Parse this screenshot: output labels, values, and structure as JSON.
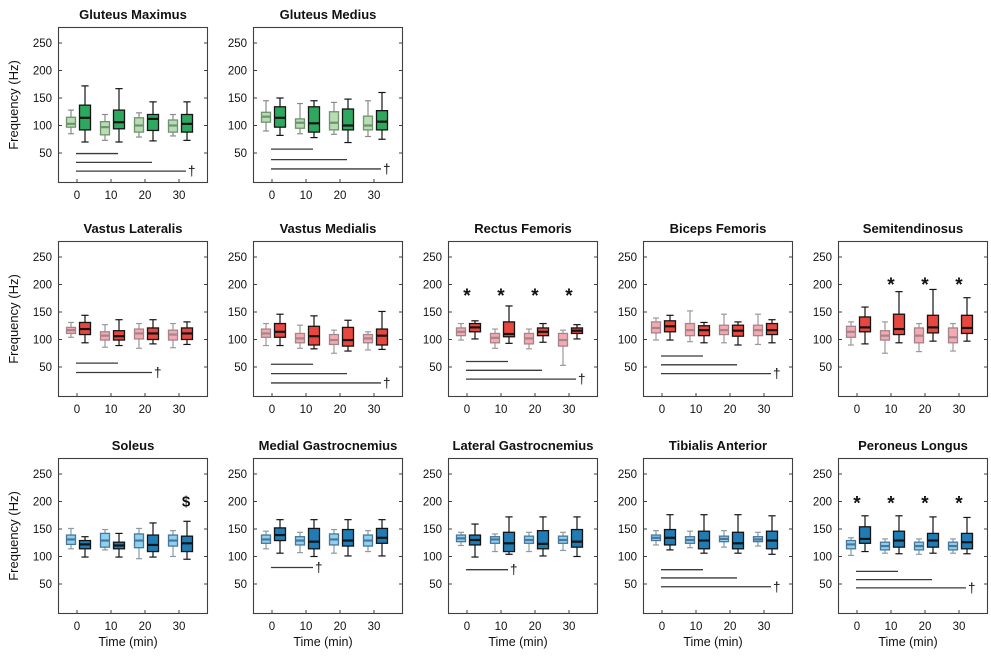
{
  "chart_data": {
    "type": "boxplot",
    "title": "",
    "xlabel": "Time (min)",
    "ylabel": "Frequency (Hz)",
    "x": [
      0,
      10,
      20,
      30
    ],
    "xticks": [
      "0",
      "10",
      "20",
      "30"
    ],
    "yticks": [
      50,
      100,
      150,
      200,
      250
    ],
    "ylim": [
      -5,
      279
    ],
    "grid": false,
    "legend_position": "none",
    "symbols": {
      "star": "*",
      "dagger": "†",
      "dollar": "$"
    },
    "colors": {
      "axis": "#3f3f3f",
      "sig_line": "#3a3a3a",
      "text": "#111111",
      "background": "#ffffff"
    },
    "row_styles": [
      {
        "group": "gluteal",
        "light_fill": "#b8dcb3",
        "light_stroke": "#6e936e",
        "light_whisker": "#8a8a8a",
        "dark_fill": "#2fa85f",
        "dark_stroke": "#141414"
      },
      {
        "group": "thigh",
        "light_fill": "#f5aab2",
        "light_stroke": "#a3858b",
        "light_whisker": "#9a9a9a",
        "dark_fill": "#e8473f",
        "dark_stroke": "#141414"
      },
      {
        "group": "lower-leg",
        "light_fill": "#8fd2ef",
        "light_stroke": "#49769a",
        "light_whisker": "#8a9aa6",
        "dark_fill": "#1f7cb4",
        "dark_stroke": "#141414"
      }
    ],
    "box_order": [
      "whisker_low",
      "q1",
      "median",
      "q3",
      "whisker_high"
    ],
    "panels": [
      {
        "title": "Gluteus Maximus",
        "row": 0,
        "col": 0,
        "light": [
          [
            85,
            97,
            103,
            115,
            128
          ],
          [
            73,
            83,
            97,
            107,
            120
          ],
          [
            79,
            88,
            100,
            114,
            123
          ],
          [
            81,
            88,
            100,
            110,
            120
          ]
        ],
        "dark": [
          [
            70,
            92,
            114,
            137,
            172
          ],
          [
            70,
            94,
            106,
            128,
            167
          ],
          [
            72,
            91,
            112,
            120,
            143
          ],
          [
            73,
            88,
            103,
            120,
            143
          ]
        ],
        "stars": null,
        "dollar": null,
        "sig_lines": [
          {
            "from": 0,
            "to": 10,
            "y": 49
          },
          {
            "from": 0,
            "to": 20,
            "y": 33
          },
          {
            "from": 0,
            "to": 30,
            "y": 17,
            "dagger": true
          }
        ]
      },
      {
        "title": "Gluteus Medius",
        "row": 0,
        "col": 1,
        "light": [
          [
            90,
            106,
            116,
            124,
            145
          ],
          [
            85,
            95,
            105,
            112,
            140
          ],
          [
            84,
            92,
            105,
            125,
            142
          ],
          [
            80,
            92,
            100,
            117,
            145
          ]
        ],
        "dark": [
          [
            82,
            97,
            114,
            134,
            150
          ],
          [
            78,
            88,
            104,
            134,
            145
          ],
          [
            69,
            92,
            100,
            130,
            148
          ],
          [
            75,
            92,
            107,
            127,
            160
          ]
        ],
        "stars": null,
        "dollar": null,
        "sig_lines": [
          {
            "from": 0,
            "to": 10,
            "y": 57
          },
          {
            "from": 0,
            "to": 20,
            "y": 38
          },
          {
            "from": 0,
            "to": 30,
            "y": 21,
            "dagger": true
          }
        ]
      },
      {
        "title": "Vastus Lateralis",
        "row": 1,
        "col": 0,
        "light": [
          [
            104,
            111,
            117,
            122,
            131
          ],
          [
            86,
            99,
            107,
            114,
            127
          ],
          [
            84,
            101,
            111,
            119,
            129
          ],
          [
            85,
            99,
            109,
            117,
            129
          ]
        ],
        "dark": [
          [
            94,
            109,
            119,
            131,
            144
          ],
          [
            89,
            99,
            106,
            116,
            136
          ],
          [
            92,
            100,
            111,
            121,
            136
          ],
          [
            91,
            100,
            111,
            121,
            132
          ]
        ],
        "stars": null,
        "dollar": null,
        "sig_lines": [
          {
            "from": 0,
            "to": 10,
            "y": 57
          },
          {
            "from": 0,
            "to": 20,
            "y": 40,
            "dagger": true
          }
        ]
      },
      {
        "title": "Vastus Medialis",
        "row": 1,
        "col": 1,
        "light": [
          [
            89,
            104,
            111,
            119,
            129
          ],
          [
            84,
            94,
            102,
            111,
            126
          ],
          [
            75,
            91,
            99,
            109,
            117
          ],
          [
            81,
            94,
            102,
            109,
            114
          ]
        ],
        "dark": [
          [
            89,
            104,
            114,
            129,
            146
          ],
          [
            83,
            90,
            106,
            124,
            143
          ],
          [
            79,
            88,
            99,
            122,
            135
          ],
          [
            82,
            90,
            107,
            119,
            151
          ]
        ],
        "stars": null,
        "dollar": null,
        "sig_lines": [
          {
            "from": 0,
            "to": 10,
            "y": 55
          },
          {
            "from": 0,
            "to": 20,
            "y": 38
          },
          {
            "from": 0,
            "to": 30,
            "y": 21,
            "dagger": true
          }
        ]
      },
      {
        "title": "Rectus Femoris",
        "row": 1,
        "col": 2,
        "light": [
          [
            99,
            107,
            114,
            121,
            129
          ],
          [
            84,
            94,
            103,
            111,
            119
          ],
          [
            83,
            92,
            102,
            111,
            119
          ],
          [
            53,
            88,
            99,
            111,
            117
          ]
        ],
        "dark": [
          [
            101,
            114,
            122,
            129,
            134
          ],
          [
            93,
            105,
            110,
            132,
            161
          ],
          [
            95,
            107,
            114,
            121,
            129
          ],
          [
            101,
            111,
            116,
            121,
            127
          ]
        ],
        "stars": {
          "times": [
            0,
            10,
            20,
            30
          ],
          "y": 185
        },
        "dollar": null,
        "sig_lines": [
          {
            "from": 0,
            "to": 10,
            "y": 60
          },
          {
            "from": 0,
            "to": 20,
            "y": 44
          },
          {
            "from": 0,
            "to": 30,
            "y": 28,
            "dagger": true
          }
        ]
      },
      {
        "title": "Biceps Femoris",
        "row": 1,
        "col": 3,
        "light": [
          [
            99,
            112,
            121,
            132,
            139
          ],
          [
            96,
            107,
            117,
            129,
            152
          ],
          [
            94,
            109,
            117,
            126,
            146
          ],
          [
            91,
            107,
            117,
            126,
            146
          ]
        ],
        "dark": [
          [
            99,
            114,
            124,
            134,
            144
          ],
          [
            94,
            107,
            117,
            125,
            131
          ],
          [
            90,
            106,
            116,
            126,
            132
          ],
          [
            94,
            109,
            117,
            129,
            136
          ]
        ],
        "stars": null,
        "dollar": null,
        "sig_lines": [
          {
            "from": 0,
            "to": 10,
            "y": 70
          },
          {
            "from": 0,
            "to": 20,
            "y": 54
          },
          {
            "from": 0,
            "to": 30,
            "y": 38,
            "dagger": true
          }
        ]
      },
      {
        "title": "Semitendinosus",
        "row": 1,
        "col": 4,
        "light": [
          [
            90,
            104,
            114,
            124,
            132
          ],
          [
            75,
            99,
            107,
            116,
            132
          ],
          [
            78,
            94,
            107,
            121,
            129
          ],
          [
            79,
            94,
            104,
            121,
            129
          ]
        ],
        "dark": [
          [
            92,
            114,
            122,
            141,
            159
          ],
          [
            94,
            109,
            119,
            146,
            187
          ],
          [
            97,
            112,
            122,
            144,
            191
          ],
          [
            97,
            111,
            121,
            144,
            176
          ]
        ],
        "stars": {
          "times": [
            10,
            20,
            30
          ],
          "y": 205
        },
        "dollar": null,
        "sig_lines": []
      },
      {
        "title": "Soleus",
        "row": 2,
        "col": 0,
        "light": [
          [
            114,
            122,
            131,
            139,
            151
          ],
          [
            112,
            117,
            129,
            142,
            149
          ],
          [
            96,
            116,
            129,
            141,
            151
          ],
          [
            100,
            119,
            129,
            139,
            147
          ]
        ],
        "dark": [
          [
            99,
            114,
            122,
            129,
            136
          ],
          [
            99,
            114,
            120,
            126,
            142
          ],
          [
            99,
            109,
            121,
            139,
            161
          ],
          [
            95,
            109,
            124,
            137,
            164
          ]
        ],
        "stars": null,
        "dollar": {
          "times": [
            30
          ],
          "y": 200
        },
        "sig_lines": []
      },
      {
        "title": "Medial Gastrocnemius",
        "row": 2,
        "col": 1,
        "light": [
          [
            114,
            124,
            131,
            139,
            146
          ],
          [
            107,
            121,
            129,
            136,
            144
          ],
          [
            106,
            121,
            131,
            141,
            149
          ],
          [
            109,
            119,
            129,
            139,
            147
          ]
        ],
        "dark": [
          [
            106,
            129,
            139,
            152,
            167
          ],
          [
            100,
            114,
            127,
            151,
            167
          ],
          [
            101,
            119,
            129,
            149,
            167
          ],
          [
            101,
            124,
            134,
            151,
            167
          ]
        ],
        "stars": null,
        "dollar": null,
        "sig_lines": [
          {
            "from": 0,
            "to": 10,
            "y": 80,
            "dagger": true
          }
        ]
      },
      {
        "title": "Lateral Gastrocnemius",
        "row": 2,
        "col": 2,
        "light": [
          [
            120,
            127,
            133,
            139,
            144
          ],
          [
            109,
            124,
            131,
            136,
            141
          ],
          [
            109,
            124,
            130,
            137,
            144
          ],
          [
            111,
            124,
            130,
            137,
            144
          ]
        ],
        "dark": [
          [
            99,
            121,
            130,
            139,
            159
          ],
          [
            104,
            109,
            124,
            144,
            172
          ],
          [
            101,
            114,
            123,
            147,
            172
          ],
          [
            100,
            117,
            127,
            149,
            172
          ]
        ],
        "stars": null,
        "dollar": null,
        "sig_lines": [
          {
            "from": 0,
            "to": 10,
            "y": 76,
            "dagger": true
          }
        ]
      },
      {
        "title": "Tibialis Anterior",
        "row": 2,
        "col": 3,
        "light": [
          [
            121,
            129,
            134,
            139,
            147
          ],
          [
            116,
            124,
            130,
            136,
            146
          ],
          [
            117,
            127,
            132,
            137,
            147
          ],
          [
            119,
            127,
            131,
            136,
            144
          ]
        ],
        "dark": [
          [
            112,
            121,
            134,
            149,
            176
          ],
          [
            106,
            114,
            129,
            146,
            176
          ],
          [
            106,
            114,
            124,
            144,
            176
          ],
          [
            104,
            114,
            129,
            146,
            174
          ]
        ],
        "stars": null,
        "dollar": null,
        "sig_lines": [
          {
            "from": 0,
            "to": 10,
            "y": 76
          },
          {
            "from": 0,
            "to": 20,
            "y": 61
          },
          {
            "from": 0,
            "to": 30,
            "y": 45,
            "dagger": true
          }
        ]
      },
      {
        "title": "Peroneus Longus",
        "row": 2,
        "col": 4,
        "light": [
          [
            102,
            114,
            122,
            129,
            134
          ],
          [
            106,
            112,
            119,
            126,
            132
          ],
          [
            104,
            112,
            119,
            126,
            132
          ],
          [
            106,
            112,
            119,
            126,
            132
          ]
        ],
        "dark": [
          [
            109,
            124,
            132,
            154,
            174
          ],
          [
            105,
            117,
            129,
            146,
            174
          ],
          [
            106,
            117,
            129,
            142,
            172
          ],
          [
            105,
            114,
            126,
            142,
            171
          ]
        ],
        "stars": {
          "times": [
            0,
            10,
            20,
            30
          ],
          "y": 202
        },
        "dollar": null,
        "sig_lines": [
          {
            "from": 0,
            "to": 10,
            "y": 73
          },
          {
            "from": 0,
            "to": 20,
            "y": 58
          },
          {
            "from": 0,
            "to": 30,
            "y": 43,
            "dagger": true
          }
        ]
      }
    ]
  }
}
